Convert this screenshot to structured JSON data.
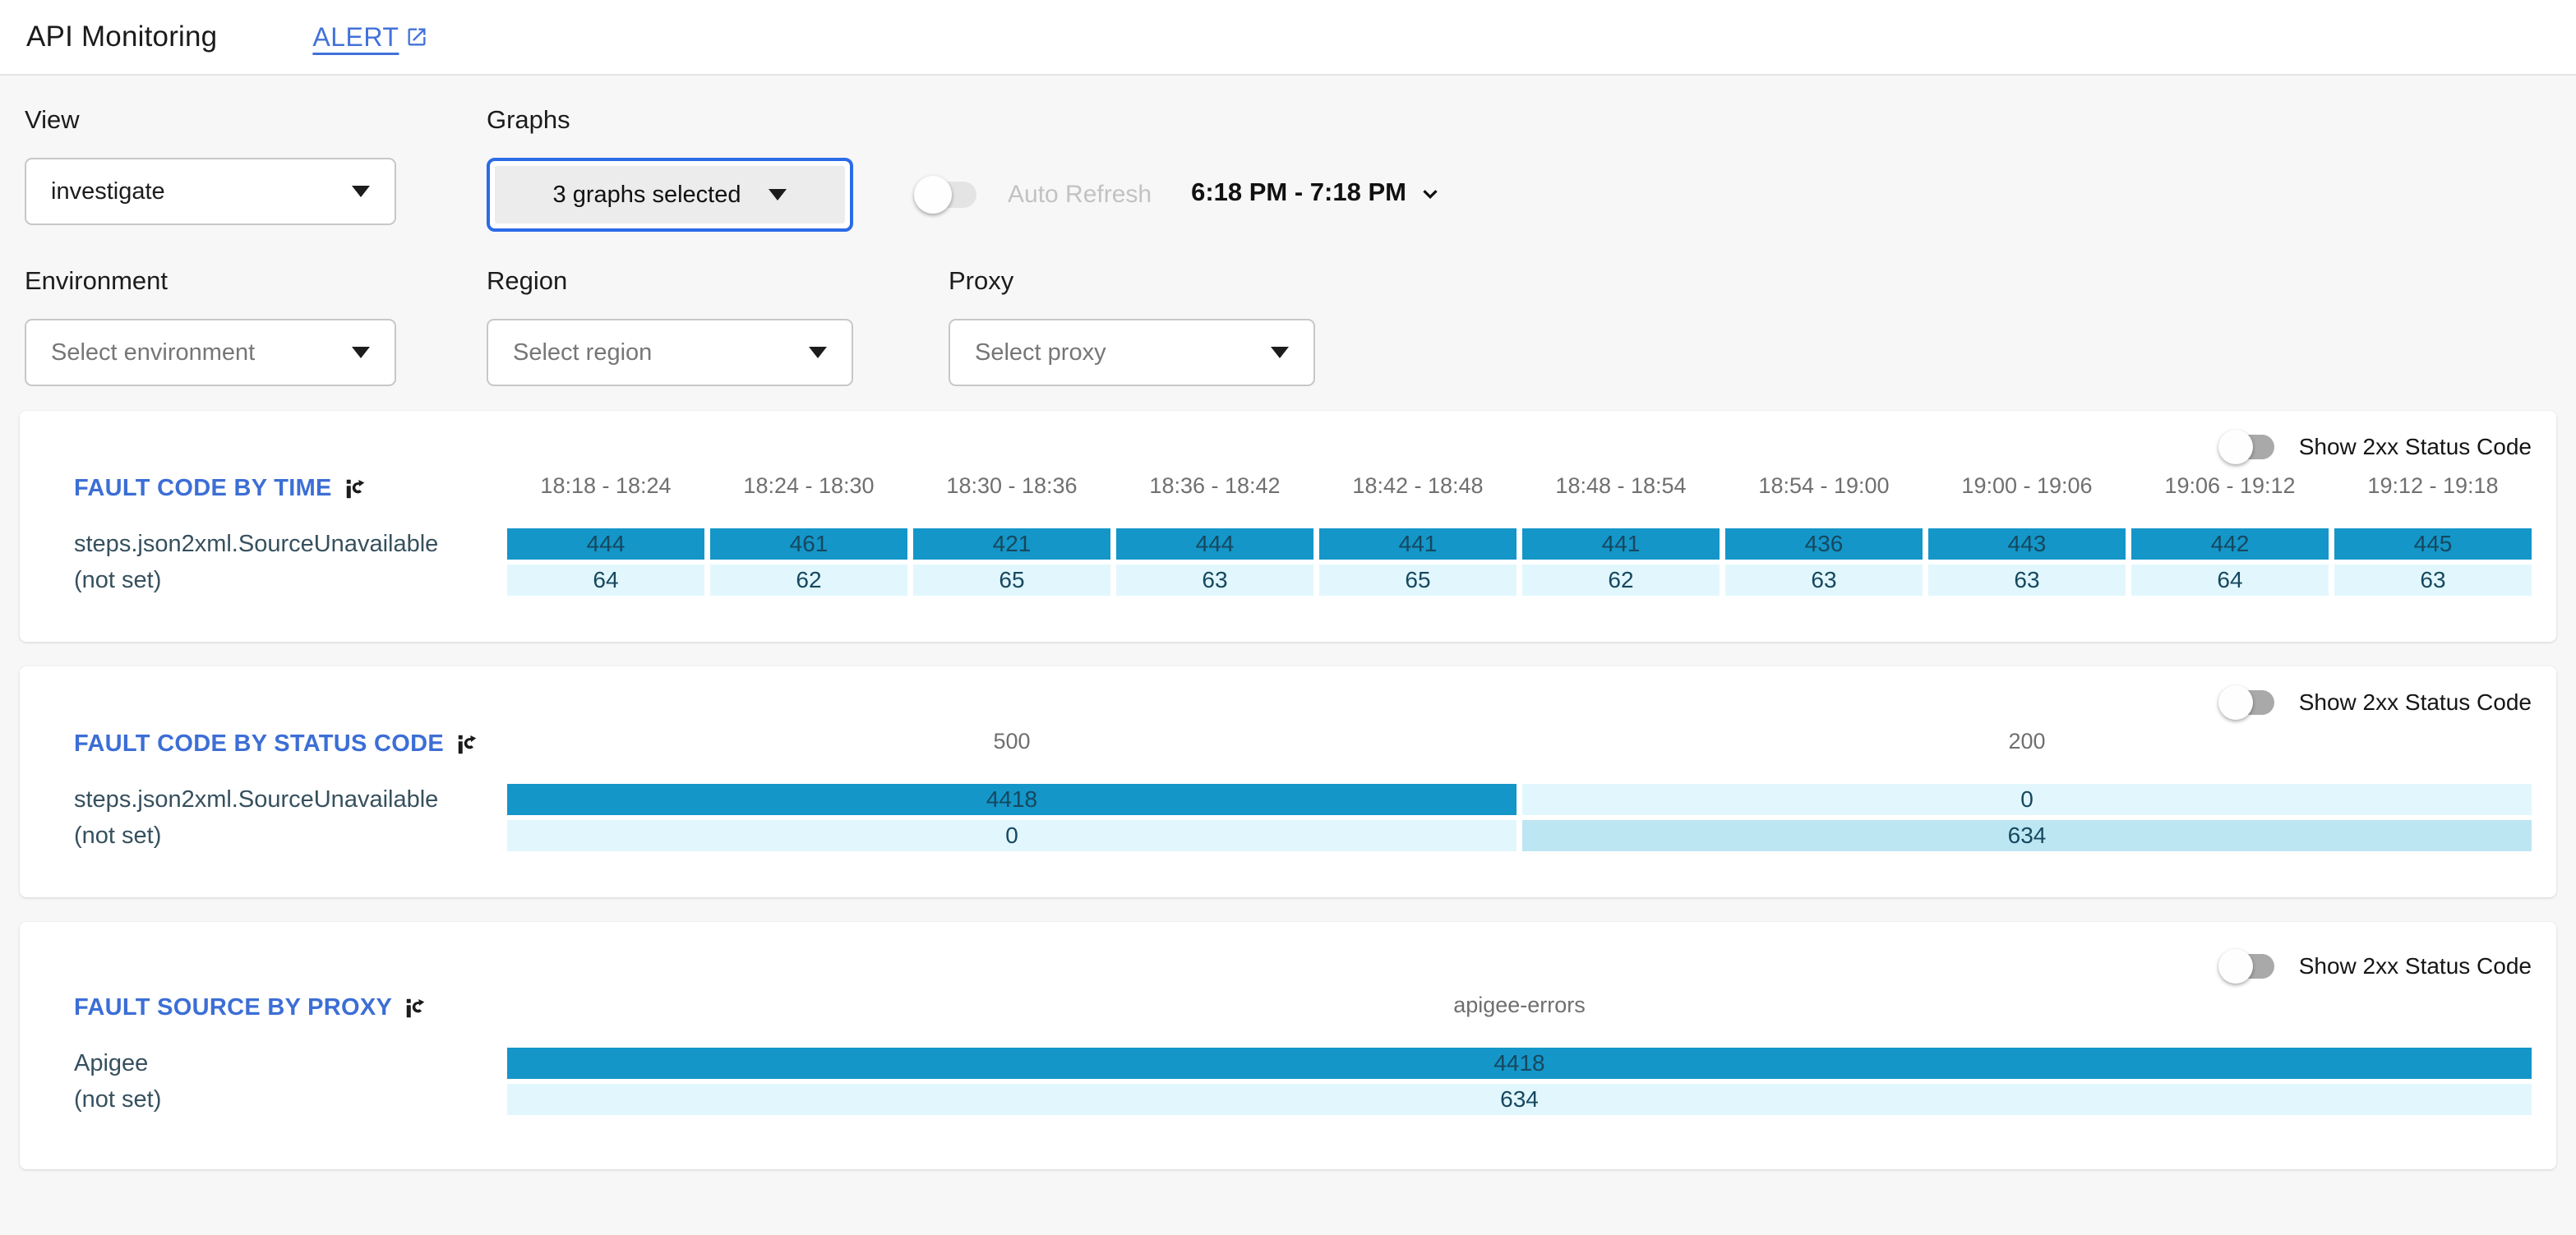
{
  "header": {
    "title": "API Monitoring",
    "alert_label": "ALERT"
  },
  "filters": {
    "view": {
      "label": "View",
      "value": "investigate"
    },
    "graphs": {
      "label": "Graphs",
      "value": "3 graphs selected"
    },
    "auto_refresh": {
      "label": "Auto Refresh",
      "enabled": false
    },
    "time_range": "6:18 PM - 7:18 PM",
    "environment": {
      "label": "Environment",
      "placeholder": "Select environment"
    },
    "region": {
      "label": "Region",
      "placeholder": "Select region"
    },
    "proxy": {
      "label": "Proxy",
      "placeholder": "Select proxy"
    }
  },
  "palette": {
    "dark": "#1496c8",
    "light": "#e1f7fd",
    "medium": "#bde6f3"
  },
  "chart_data": [
    {
      "type": "heatmap",
      "title": "FAULT CODE BY TIME",
      "toggle_label": "Show 2xx Status Code",
      "toggle_on": false,
      "columns": [
        "18:18 - 18:24",
        "18:24 - 18:30",
        "18:30 - 18:36",
        "18:36 - 18:42",
        "18:42 - 18:48",
        "18:48 - 18:54",
        "18:54 - 19:00",
        "19:00 - 19:06",
        "19:06 - 19:12",
        "19:12 - 19:18"
      ],
      "rows": [
        {
          "label": "steps.json2xml.SourceUnavailable",
          "values": [
            444,
            461,
            421,
            444,
            441,
            441,
            436,
            443,
            442,
            445
          ],
          "colors": [
            "dark",
            "dark",
            "dark",
            "dark",
            "dark",
            "dark",
            "dark",
            "dark",
            "dark",
            "dark"
          ]
        },
        {
          "label": "(not set)",
          "values": [
            64,
            62,
            65,
            63,
            65,
            62,
            63,
            63,
            64,
            63
          ],
          "colors": [
            "light",
            "light",
            "light",
            "light",
            "light",
            "light",
            "light",
            "light",
            "light",
            "light"
          ]
        }
      ]
    },
    {
      "type": "heatmap",
      "title": "FAULT CODE BY STATUS CODE",
      "toggle_label": "Show 2xx Status Code",
      "toggle_on": false,
      "columns": [
        "500",
        "200"
      ],
      "rows": [
        {
          "label": "steps.json2xml.SourceUnavailable",
          "values": [
            4418,
            0
          ],
          "colors": [
            "dark",
            "light"
          ]
        },
        {
          "label": "(not set)",
          "values": [
            0,
            634
          ],
          "colors": [
            "light",
            "medium"
          ]
        }
      ]
    },
    {
      "type": "heatmap",
      "title": "FAULT SOURCE BY PROXY",
      "toggle_label": "Show 2xx Status Code",
      "toggle_on": false,
      "columns": [
        "apigee-errors"
      ],
      "rows": [
        {
          "label": "Apigee",
          "values": [
            4418
          ],
          "colors": [
            "dark"
          ]
        },
        {
          "label": "(not set)",
          "values": [
            634
          ],
          "colors": [
            "light"
          ]
        }
      ]
    }
  ]
}
